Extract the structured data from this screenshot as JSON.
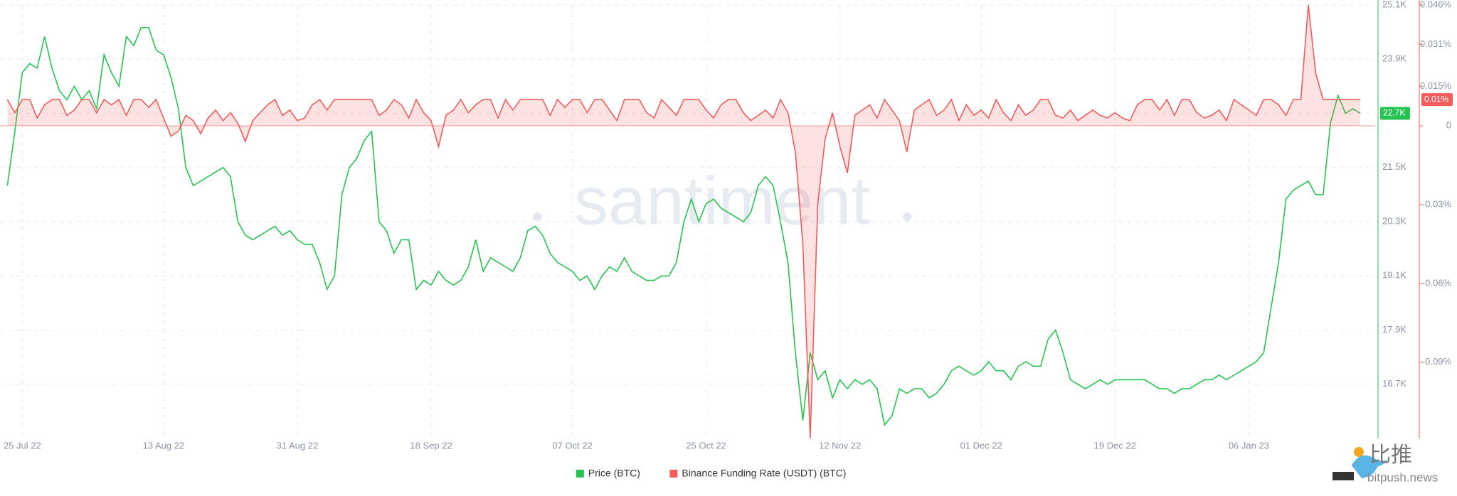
{
  "chart_data": {
    "type": "line",
    "watermark": "santiment",
    "brand": {
      "name": "比推",
      "site": "bitpush.news"
    },
    "x": [
      "2022-07-23",
      "2022-07-24",
      "2022-07-25",
      "2022-07-26",
      "2022-07-27",
      "2022-07-28",
      "2022-07-29",
      "2022-07-30",
      "2022-07-31",
      "2022-08-01",
      "2022-08-02",
      "2022-08-03",
      "2022-08-04",
      "2022-08-05",
      "2022-08-06",
      "2022-08-07",
      "2022-08-08",
      "2022-08-09",
      "2022-08-10",
      "2022-08-11",
      "2022-08-12",
      "2022-08-13",
      "2022-08-14",
      "2022-08-15",
      "2022-08-16",
      "2022-08-17",
      "2022-08-18",
      "2022-08-19",
      "2022-08-20",
      "2022-08-21",
      "2022-08-22",
      "2022-08-23",
      "2022-08-24",
      "2022-08-25",
      "2022-08-26",
      "2022-08-27",
      "2022-08-28",
      "2022-08-29",
      "2022-08-30",
      "2022-08-31",
      "2022-09-01",
      "2022-09-02",
      "2022-09-03",
      "2022-09-04",
      "2022-09-05",
      "2022-09-06",
      "2022-09-07",
      "2022-09-08",
      "2022-09-09",
      "2022-09-10",
      "2022-09-11",
      "2022-09-12",
      "2022-09-13",
      "2022-09-14",
      "2022-09-15",
      "2022-09-16",
      "2022-09-17",
      "2022-09-18",
      "2022-09-19",
      "2022-09-20",
      "2022-09-21",
      "2022-09-22",
      "2022-09-23",
      "2022-09-24",
      "2022-09-25",
      "2022-09-26",
      "2022-09-27",
      "2022-09-28",
      "2022-09-29",
      "2022-09-30",
      "2022-10-01",
      "2022-10-02",
      "2022-10-03",
      "2022-10-04",
      "2022-10-05",
      "2022-10-06",
      "2022-10-07",
      "2022-10-08",
      "2022-10-09",
      "2022-10-10",
      "2022-10-11",
      "2022-10-12",
      "2022-10-13",
      "2022-10-14",
      "2022-10-15",
      "2022-10-16",
      "2022-10-17",
      "2022-10-18",
      "2022-10-19",
      "2022-10-20",
      "2022-10-21",
      "2022-10-22",
      "2022-10-23",
      "2022-10-24",
      "2022-10-25",
      "2022-10-26",
      "2022-10-27",
      "2022-10-28",
      "2022-10-29",
      "2022-10-30",
      "2022-10-31",
      "2022-11-01",
      "2022-11-02",
      "2022-11-03",
      "2022-11-04",
      "2022-11-05",
      "2022-11-06",
      "2022-11-07",
      "2022-11-08",
      "2022-11-09",
      "2022-11-10",
      "2022-11-11",
      "2022-11-12",
      "2022-11-13",
      "2022-11-14",
      "2022-11-15",
      "2022-11-16",
      "2022-11-17",
      "2022-11-18",
      "2022-11-19",
      "2022-11-20",
      "2022-11-21",
      "2022-11-22",
      "2022-11-23",
      "2022-11-24",
      "2022-11-25",
      "2022-11-26",
      "2022-11-27",
      "2022-11-28",
      "2022-11-29",
      "2022-11-30",
      "2022-12-01",
      "2022-12-02",
      "2022-12-03",
      "2022-12-04",
      "2022-12-05",
      "2022-12-06",
      "2022-12-07",
      "2022-12-08",
      "2022-12-09",
      "2022-12-10",
      "2022-12-11",
      "2022-12-12",
      "2022-12-13",
      "2022-12-14",
      "2022-12-15",
      "2022-12-16",
      "2022-12-17",
      "2022-12-18",
      "2022-12-19",
      "2022-12-20",
      "2022-12-21",
      "2022-12-22",
      "2022-12-23",
      "2022-12-24",
      "2022-12-25",
      "2022-12-26",
      "2022-12-27",
      "2022-12-28",
      "2022-12-29",
      "2022-12-30",
      "2022-12-31",
      "2023-01-01",
      "2023-01-02",
      "2023-01-03",
      "2023-01-04",
      "2023-01-05",
      "2023-01-06",
      "2023-01-07",
      "2023-01-08",
      "2023-01-09",
      "2023-01-10",
      "2023-01-11",
      "2023-01-12",
      "2023-01-13",
      "2023-01-14",
      "2023-01-15",
      "2023-01-16",
      "2023-01-17",
      "2023-01-18",
      "2023-01-19",
      "2023-01-20",
      "2023-01-21"
    ],
    "xlim": [
      "2022-07-22",
      "2023-01-23"
    ],
    "xticks": [
      {
        "value": "2022-07-25",
        "label": "25 Jul 22"
      },
      {
        "value": "2022-08-13",
        "label": "13 Aug 22"
      },
      {
        "value": "2022-08-31",
        "label": "31 Aug 22"
      },
      {
        "value": "2022-09-18",
        "label": "18 Sep 22"
      },
      {
        "value": "2022-10-07",
        "label": "07 Oct 22"
      },
      {
        "value": "2022-10-25",
        "label": "25 Oct 22"
      },
      {
        "value": "2022-11-12",
        "label": "12 Nov 22"
      },
      {
        "value": "2022-12-01",
        "label": "01 Dec 22"
      },
      {
        "value": "2022-12-19",
        "label": "19 Dec 22"
      },
      {
        "value": "2023-01-06",
        "label": "06 Jan 23"
      }
    ],
    "ylim": [
      15500,
      25100
    ],
    "yticks": [
      {
        "value": 16700,
        "label": "16.7K"
      },
      {
        "value": 17900,
        "label": "17.9K"
      },
      {
        "value": 19100,
        "label": "19.1K"
      },
      {
        "value": 20300,
        "label": "20.3K"
      },
      {
        "value": 21500,
        "label": "21.5K"
      },
      {
        "value": 22700,
        "label": "22.7K"
      },
      {
        "value": 23900,
        "label": "23.9K"
      },
      {
        "value": 25100,
        "label": "25.1K"
      }
    ],
    "y2lim": [
      -0.119,
      0.046
    ],
    "y2ticks": [
      {
        "value": -0.09,
        "label": "-0.09%"
      },
      {
        "value": -0.06,
        "label": "-0.06%"
      },
      {
        "value": -0.03,
        "label": "-0.03%"
      },
      0,
      {
        "value": 0.015,
        "label": "0.015%"
      },
      {
        "value": 0.031,
        "label": "0.031%"
      },
      {
        "value": 0.046,
        "label": "0.046%"
      }
    ],
    "grid": true,
    "legend": "bottom",
    "series": [
      {
        "name": "Price (BTC)",
        "color": "#26c350",
        "last_label": "22.7K",
        "values": [
          21100,
          22300,
          23600,
          23800,
          23700,
          24400,
          23700,
          23200,
          23000,
          23300,
          23000,
          23200,
          22800,
          24000,
          23600,
          23300,
          24400,
          24200,
          24600,
          24600,
          24100,
          24000,
          23500,
          22800,
          21500,
          21100,
          21200,
          21300,
          21400,
          21500,
          21300,
          20300,
          20000,
          19900,
          20000,
          20100,
          20200,
          20000,
          20100,
          19900,
          19800,
          19800,
          19400,
          18800,
          19100,
          20900,
          21500,
          21700,
          22100,
          22300,
          20300,
          20100,
          19600,
          19900,
          19900,
          18800,
          19000,
          18900,
          19200,
          19000,
          18900,
          19000,
          19300,
          19900,
          19200,
          19500,
          19400,
          19300,
          19200,
          19500,
          20100,
          20200,
          20000,
          19600,
          19400,
          19300,
          19200,
          19000,
          19100,
          18800,
          19100,
          19300,
          19200,
          19500,
          19200,
          19100,
          19000,
          19000,
          19100,
          19100,
          19400,
          20300,
          20800,
          20300,
          20700,
          20800,
          20600,
          20500,
          20400,
          20300,
          20500,
          21100,
          21300,
          21100,
          20300,
          19400,
          17400,
          15900,
          17400,
          16800,
          17000,
          16400,
          16800,
          16600,
          16800,
          16700,
          16800,
          16600,
          15800,
          16000,
          16600,
          16500,
          16600,
          16600,
          16400,
          16500,
          16700,
          17000,
          17100,
          17000,
          16900,
          17000,
          17200,
          17000,
          17000,
          16800,
          17100,
          17200,
          17100,
          17100,
          17700,
          17900,
          17400,
          16800,
          16700,
          16600,
          16700,
          16800,
          16700,
          16800,
          16800,
          16800,
          16800,
          16800,
          16700,
          16600,
          16600,
          16500,
          16600,
          16600,
          16700,
          16800,
          16800,
          16900,
          16800,
          16900,
          17000,
          17100,
          17200,
          17400,
          18400,
          19400,
          20800,
          21000,
          21100,
          21200,
          20900,
          20900,
          22500,
          23100,
          22700,
          22800,
          22700
        ]
      },
      {
        "name": "Binance Funding Rate (USDT) (BTC)",
        "color": "#f25c5c",
        "axis": "y2",
        "last_label": "0.01%",
        "values": [
          0.01,
          0.005,
          0.01,
          0.01,
          0.003,
          0.008,
          0.01,
          0.01,
          0.004,
          0.006,
          0.01,
          0.01,
          0.005,
          0.01,
          0.008,
          0.01,
          0.004,
          0.01,
          0.01,
          0.007,
          0.01,
          0.003,
          -0.004,
          -0.002,
          0.004,
          0.002,
          -0.003,
          0.003,
          0.006,
          0.002,
          0.005,
          0.001,
          -0.006,
          0.002,
          0.005,
          0.008,
          0.01,
          0.004,
          0.006,
          0.002,
          0.003,
          0.008,
          0.01,
          0.006,
          0.01,
          0.01,
          0.01,
          0.01,
          0.01,
          0.01,
          0.004,
          0.006,
          0.01,
          0.008,
          0.003,
          0.01,
          0.005,
          0.002,
          -0.008,
          0.004,
          0.006,
          0.01,
          0.005,
          0.008,
          0.01,
          0.01,
          0.003,
          0.01,
          0.006,
          0.01,
          0.01,
          0.01,
          0.01,
          0.004,
          0.01,
          0.007,
          0.01,
          0.01,
          0.005,
          0.01,
          0.01,
          0.006,
          0.002,
          0.01,
          0.01,
          0.01,
          0.005,
          0.003,
          0.01,
          0.007,
          0.004,
          0.01,
          0.01,
          0.01,
          0.006,
          0.003,
          0.008,
          0.01,
          0.01,
          0.005,
          0.002,
          0.004,
          0.006,
          0.003,
          0.01,
          0.005,
          -0.01,
          -0.045,
          -0.119,
          -0.03,
          -0.005,
          0.005,
          -0.008,
          -0.018,
          0.004,
          0.006,
          0.008,
          0.003,
          0.01,
          0.006,
          0.002,
          -0.01,
          0.006,
          0.008,
          0.01,
          0.004,
          0.006,
          0.01,
          0.002,
          0.008,
          0.004,
          0.006,
          0.003,
          0.01,
          0.005,
          0.002,
          0.008,
          0.004,
          0.006,
          0.01,
          0.01,
          0.004,
          0.003,
          0.006,
          0.002,
          0.004,
          0.006,
          0.004,
          0.003,
          0.005,
          0.003,
          0.002,
          0.008,
          0.01,
          0.01,
          0.006,
          0.01,
          0.004,
          0.01,
          0.01,
          0.005,
          0.003,
          0.004,
          0.006,
          0.002,
          0.01,
          0.008,
          0.006,
          0.004,
          0.01,
          0.01,
          0.008,
          0.004,
          0.01,
          0.01,
          0.046,
          0.02,
          0.01,
          0.01,
          0.01,
          0.01,
          0.01,
          0.01
        ]
      }
    ]
  }
}
